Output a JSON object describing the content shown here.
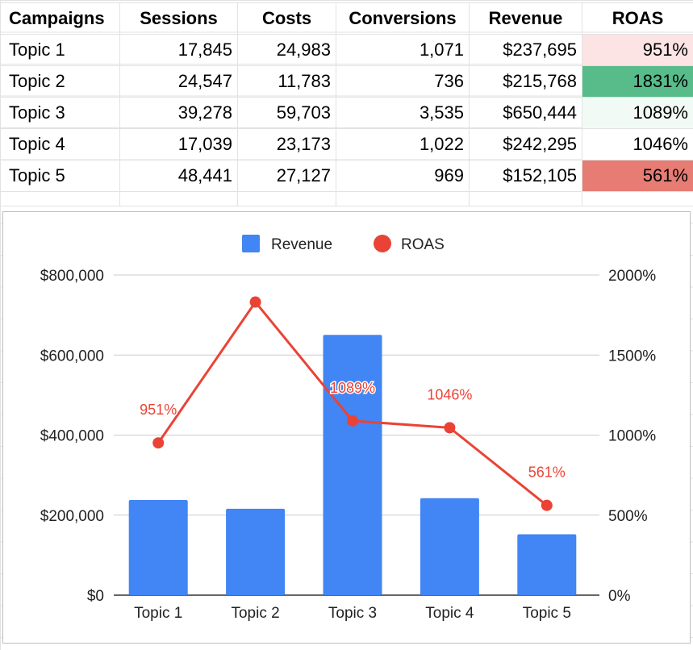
{
  "table": {
    "headers": [
      "Campaigns",
      "Sessions",
      "Costs",
      "Conversions",
      "Revenue",
      "ROAS"
    ],
    "rows": [
      {
        "campaign": "Topic 1",
        "sessions": "17,845",
        "costs": "24,983",
        "conversions": "1,071",
        "revenue": "$237,695",
        "roas": "951%",
        "roas_color": "#fbe4e3"
      },
      {
        "campaign": "Topic 2",
        "sessions": "24,547",
        "costs": "11,783",
        "conversions": "736",
        "revenue": "$215,768",
        "roas": "1831%",
        "roas_color": "#57bb8a"
      },
      {
        "campaign": "Topic 3",
        "sessions": "39,278",
        "costs": "59,703",
        "conversions": "3,535",
        "revenue": "$650,444",
        "roas": "1089%",
        "roas_color": "#f2faf6"
      },
      {
        "campaign": "Topic 4",
        "sessions": "17,039",
        "costs": "23,173",
        "conversions": "1,022",
        "revenue": "$242,295",
        "roas": "1046%",
        "roas_color": "#ffffff"
      },
      {
        "campaign": "Topic 5",
        "sessions": "48,441",
        "costs": "27,127",
        "conversions": "969",
        "revenue": "$152,105",
        "roas": "561%",
        "roas_color": "#e67c73"
      }
    ]
  },
  "chart_data": {
    "type": "bar",
    "categories": [
      "Topic 1",
      "Topic 2",
      "Topic 3",
      "Topic 4",
      "Topic 5"
    ],
    "series": [
      {
        "name": "Revenue",
        "type": "bar",
        "axis": "left",
        "color": "#4285f4",
        "values": [
          237695,
          215768,
          650444,
          242295,
          152105
        ]
      },
      {
        "name": "ROAS",
        "type": "line",
        "axis": "right",
        "color": "#ea4335",
        "values": [
          951,
          1831,
          1089,
          1046,
          561
        ],
        "data_labels": [
          "951%",
          "",
          "1089%",
          "1046%",
          "561%"
        ]
      }
    ],
    "legend": {
      "position": "top",
      "items": [
        "Revenue",
        "ROAS"
      ]
    },
    "y_left": {
      "ylim": [
        0,
        800000
      ],
      "ticks": [
        0,
        200000,
        400000,
        600000,
        800000
      ],
      "tick_labels": [
        "$0",
        "$200,000",
        "$400,000",
        "$600,000",
        "$800,000"
      ]
    },
    "y_right": {
      "ylim": [
        0,
        2000
      ],
      "ticks": [
        0,
        500,
        1000,
        1500,
        2000
      ],
      "tick_labels": [
        "0%",
        "500%",
        "1000%",
        "1500%",
        "2000%"
      ]
    },
    "grid": true
  }
}
